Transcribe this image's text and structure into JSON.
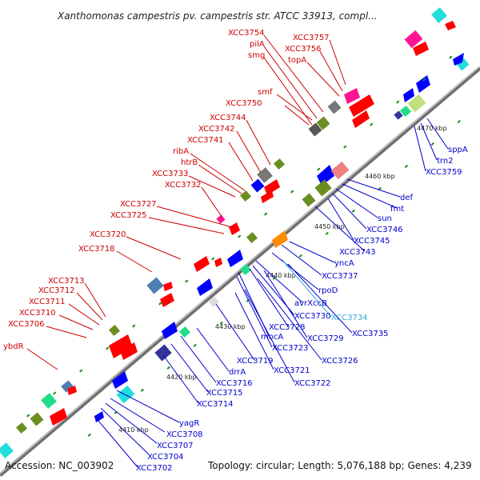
{
  "header": {
    "title": "Xanthomonas campestris pv. campestris str. ATCC 33913, compl..."
  },
  "footer": {
    "accession": "Accession: NC_003902",
    "topology": "Topology: circular; Length: 5,076,188 bp; Genes: 4,239"
  },
  "scale": {
    "ticks": [
      "4410 kbp",
      "4420 kbp",
      "4430 kbp",
      "4440 kbp",
      "4450 kbp",
      "4460 kbp",
      "4470 kbp"
    ]
  },
  "colors": {
    "forward": "#ff0000",
    "reverse": "#0000ff",
    "backbone": "#7f7f7f",
    "accent_magenta": "#ff1493",
    "accent_cyan": "#22dddd",
    "accent_olive": "#6b8e23",
    "accent_gray": "#777777"
  },
  "labels": {
    "forward": [
      "XCC3754",
      "pilA",
      "smg",
      "XCC3757",
      "XCC3756",
      "topA",
      "smf",
      "XCC3750",
      "XCC3744",
      "XCC3742",
      "XCC3741",
      "ribA",
      "htrB",
      "XCC3733",
      "XCC3732",
      "XCC3727",
      "XCC3725",
      "XCC3720",
      "XCC3718",
      "XCC3713",
      "XCC3712",
      "XCC3711",
      "XCC3710",
      "XCC3706",
      "ybdR"
    ],
    "reverse": [
      "sppA",
      "trn2",
      "XCC3759",
      "def",
      "fmt",
      "sun",
      "XCC3746",
      "XCC3745",
      "XCC3743",
      "yncA",
      "XCC3737",
      "rpoD",
      "avrXccB",
      "XCC3734",
      "XCC3730",
      "XCC3735",
      "XCC3728",
      "XCC3729",
      "mocA",
      "XCC3723",
      "XCC3726",
      "XCC3719",
      "XCC3721",
      "drrA",
      "XCC3722",
      "XCC3716",
      "XCC3715",
      "XCC3714",
      "yagR",
      "XCC3708",
      "XCC3707",
      "XCC3704",
      "XCC3702"
    ]
  }
}
